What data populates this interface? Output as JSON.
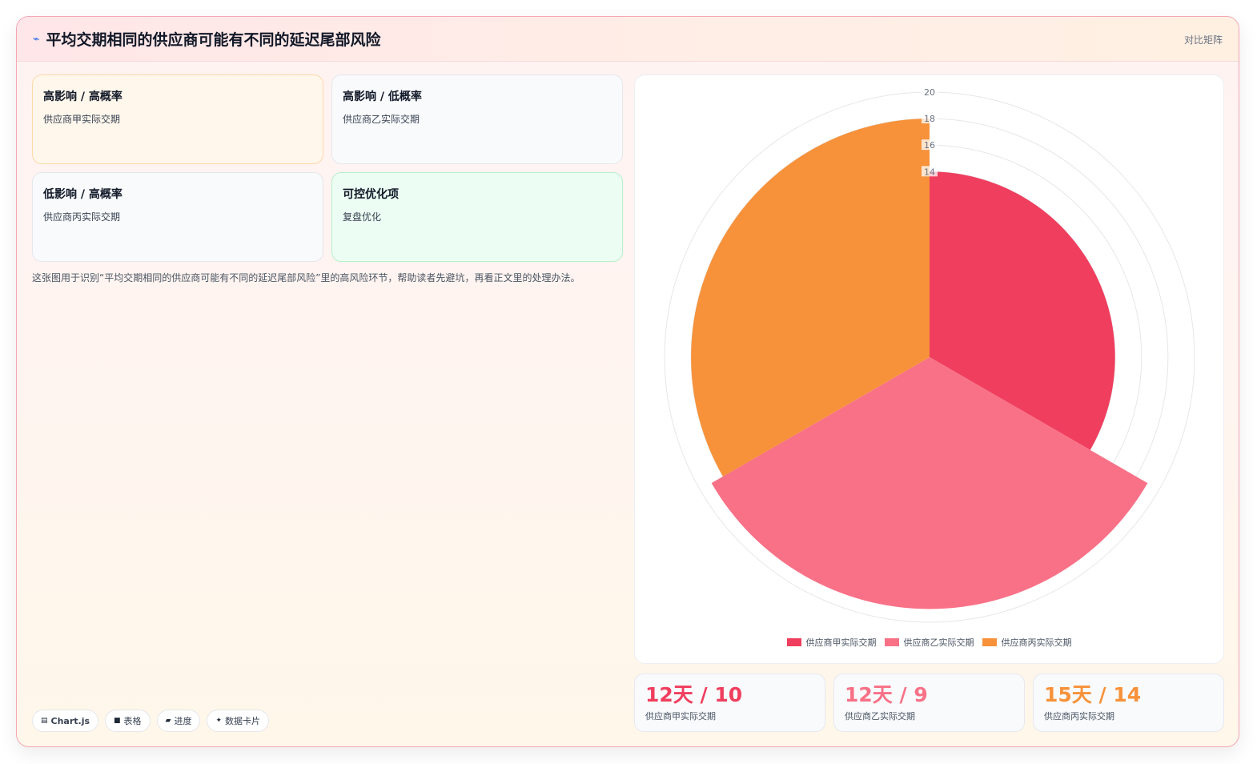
{
  "header": {
    "icon": "trend-icon",
    "title": "平均交期相同的供应商可能有不同的延迟尾部风险",
    "corner_label": "对比矩阵"
  },
  "cards": [
    {
      "title": "高影响 / 高概率",
      "subtitle": "供应商甲实际交期"
    },
    {
      "title": "高影响 / 低概率",
      "subtitle": "供应商乙实际交期"
    },
    {
      "title": "低影响 / 高概率",
      "subtitle": "供应商丙实际交期"
    },
    {
      "title": "可控优化项",
      "subtitle": "复盘优化"
    }
  ],
  "description": "这张图用于识别“平均交期相同的供应商可能有不同的延迟尾部风险”里的高风险环节，帮助读者先避坑，再看正文里的处理办法。",
  "tags": [
    {
      "icon": "table-icon",
      "label": "Chart.js"
    },
    {
      "icon": "grid-icon",
      "label": "表格"
    },
    {
      "icon": "progress-icon",
      "label": "进度"
    },
    {
      "icon": "sparkle-icon",
      "label": "数据卡片"
    }
  ],
  "stats": [
    {
      "value": "12天 / 10",
      "label": "供应商甲实际交期",
      "color": "#f03e5e"
    },
    {
      "value": "12天 / 9",
      "label": "供应商乙实际交期",
      "color": "#f87187"
    },
    {
      "value": "15天 / 14",
      "label": "供应商丙实际交期",
      "color": "#f7923a"
    }
  ],
  "chart_data": {
    "type": "polarArea",
    "categories": [
      "供应商甲实际交期",
      "供应商乙实际交期",
      "供应商丙实际交期"
    ],
    "values": [
      14,
      19,
      18
    ],
    "colors": [
      "#f03e5e",
      "#f87187",
      "#f7923a"
    ],
    "r_ticks": [
      14,
      16,
      18,
      20
    ],
    "r_range": [
      0,
      20
    ],
    "legend_position": "bottom",
    "grid": true
  }
}
